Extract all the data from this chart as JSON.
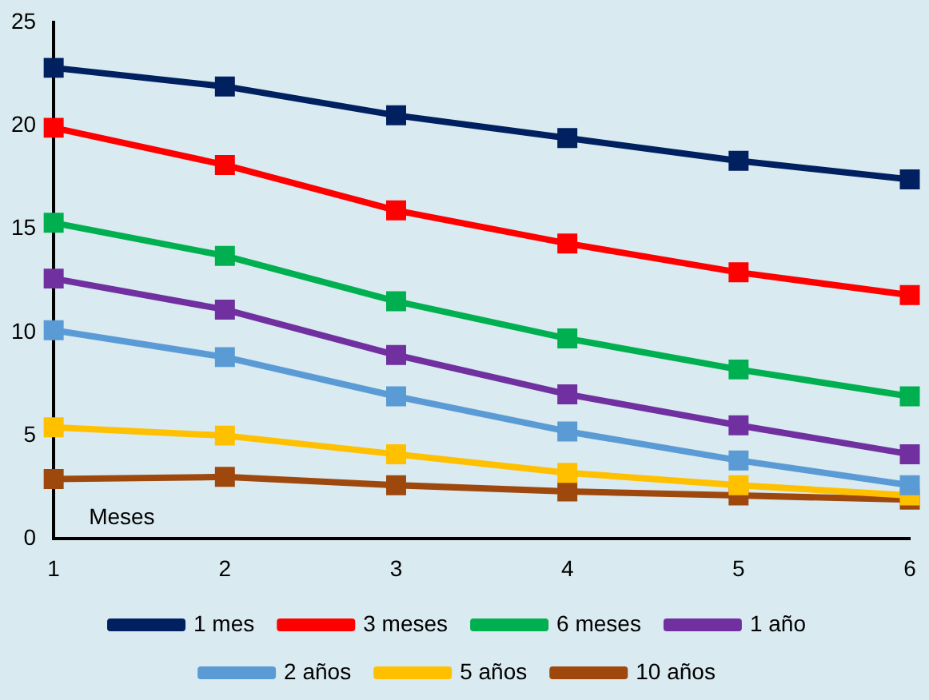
{
  "chart_data": {
    "type": "line",
    "x": [
      1,
      2,
      3,
      4,
      5,
      6
    ],
    "xlim": [
      1,
      6
    ],
    "xticks": [
      1,
      2,
      3,
      4,
      5,
      6
    ],
    "ylim": [
      0,
      25
    ],
    "yticks": [
      0,
      5,
      10,
      15,
      20,
      25
    ],
    "grid": false,
    "legend": "bottom",
    "marker": "square",
    "line_style": "solid",
    "annotations": [
      "Meses"
    ],
    "series": [
      {
        "name": "1 mes",
        "color": "#002060",
        "values": [
          22.8,
          21.9,
          20.5,
          19.4,
          18.3,
          17.4
        ]
      },
      {
        "name": "3 meses",
        "color": "#ff0000",
        "values": [
          19.9,
          18.1,
          15.9,
          14.3,
          12.9,
          11.8
        ]
      },
      {
        "name": "6 meses",
        "color": "#00b050",
        "values": [
          15.3,
          13.7,
          11.5,
          9.7,
          8.2,
          6.9
        ]
      },
      {
        "name": "1 año",
        "color": "#7030a0",
        "values": [
          12.6,
          11.1,
          8.9,
          7.0,
          5.5,
          4.1
        ]
      },
      {
        "name": "2 años",
        "color": "#5b9bd5",
        "values": [
          10.1,
          8.8,
          6.9,
          5.2,
          3.8,
          2.6
        ]
      },
      {
        "name": "5 años",
        "color": "#ffc000",
        "values": [
          5.4,
          5.0,
          4.1,
          3.2,
          2.6,
          2.1
        ]
      },
      {
        "name": "10 años",
        "color": "#9e480e",
        "values": [
          2.9,
          3.0,
          2.6,
          2.3,
          2.1,
          1.9
        ]
      }
    ]
  }
}
